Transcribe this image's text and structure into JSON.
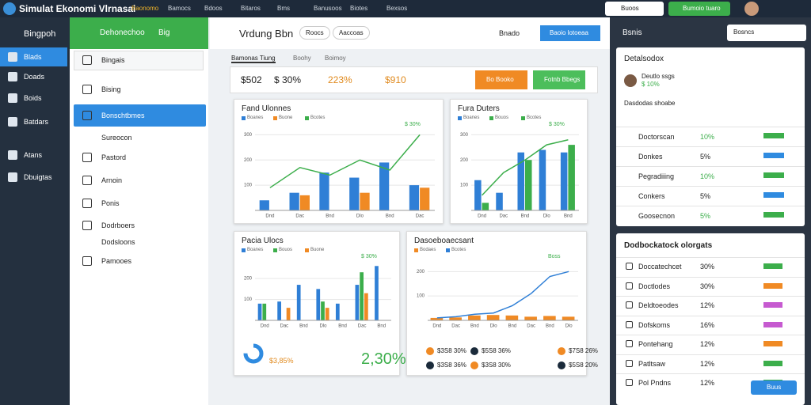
{
  "app": {
    "title": "Simulat Ekonomi Vlrnasai",
    "menu": [
      "Baonomo",
      "Bamocs",
      "Bdoos",
      "Bitaros",
      "Bms",
      "Banusoos",
      "Biotes",
      "Bexsos"
    ],
    "search": "Buoos",
    "action": "Bumoio tuaro"
  },
  "sidebar": {
    "brand": "Bingpoh",
    "items": [
      "Blads",
      "Doads",
      "Boids",
      "Batdars",
      "Atans",
      "Dbuigtas"
    ]
  },
  "panel": {
    "title": "Dehonechoo",
    "badge": "Big",
    "items": [
      "Bingais",
      "Bising",
      "Bonschtbmes",
      "Sureocon",
      "Pastord",
      "Arnoin",
      "Ponis",
      "Dodrboers",
      "Dodsloons",
      "Pamooes"
    ]
  },
  "main": {
    "title": "Vrdung Bbn",
    "tabs": [
      "Roocs",
      "Aaccoas"
    ],
    "button_label": "Bnado",
    "button": "Baoio lotoeaa",
    "subtabs": [
      "Bamonas Tiung",
      "Boohy",
      "Boimoy"
    ],
    "stats": [
      "$502",
      "$ 30%",
      "223%",
      "$910"
    ],
    "actions": [
      "Bo Booko",
      "Fotnb Bbegs"
    ],
    "charts": [
      {
        "type": "bar",
        "title": "Fand Ulonnes",
        "badge": "$ 30%",
        "categories": [
          "Dnd",
          "Dac",
          "Bnd",
          "Dlo",
          "Bnd",
          "Dac"
        ],
        "ylim": [
          0,
          320
        ],
        "yticks": [
          100,
          200,
          300
        ],
        "series": [
          {
            "name": "Boanes",
            "color": "#2f7fd6",
            "type": "bar",
            "values": [
              40,
              70,
              150,
              130,
              190,
              100
            ]
          },
          {
            "name": "Buone",
            "color": "#f08a24",
            "type": "bar",
            "values": [
              null,
              60,
              null,
              70,
              null,
              90
            ]
          },
          {
            "name": "Bcotes",
            "color": "#3cae4b",
            "type": "line",
            "values": [
              90,
              170,
              140,
              200,
              160,
              300
            ]
          }
        ]
      },
      {
        "type": "bar",
        "title": "Fura Duters",
        "badge": "$ 30%",
        "categories": [
          "Dnd",
          "Dac",
          "Bnd",
          "Dlo",
          "Bnd"
        ],
        "ylim": [
          0,
          320
        ],
        "yticks": [
          100,
          200,
          300
        ],
        "series": [
          {
            "name": "Boanes",
            "color": "#2f7fd6",
            "type": "bar",
            "values": [
              120,
              70,
              230,
              240,
              230
            ]
          },
          {
            "name": "Bouos",
            "color": "#3cae4b",
            "type": "bar",
            "values": [
              30,
              null,
              200,
              null,
              260
            ]
          },
          {
            "name": "Bcotes",
            "color": "#3cae4b",
            "type": "line",
            "values": [
              60,
              150,
              200,
              260,
              280
            ]
          }
        ]
      },
      {
        "type": "bar",
        "title": "Pacia Ulocs",
        "badge": "$ 30%",
        "categories": [
          "Dnd",
          "Dac",
          "Bnd",
          "Dlo",
          "Bnd",
          "Dac",
          "Bnd"
        ],
        "ylim": [
          0,
          280
        ],
        "yticks": [
          100,
          200
        ],
        "series": [
          {
            "name": "Boanes",
            "color": "#2f7fd6",
            "type": "bar",
            "values": [
              80,
              90,
              170,
              150,
              80,
              170,
              260
            ]
          },
          {
            "name": "Bouos",
            "color": "#3cae4b",
            "type": "bar",
            "values": [
              80,
              null,
              null,
              90,
              null,
              230,
              null
            ]
          },
          {
            "name": "Buone",
            "color": "#f08a24",
            "type": "bar",
            "values": [
              null,
              60,
              null,
              60,
              null,
              130,
              null
            ]
          }
        ]
      },
      {
        "type": "line",
        "title": "Dasoeboaecsant",
        "badge": "Boss",
        "categories": [
          "Dnd",
          "Dac",
          "Bnd",
          "Dlo",
          "Bnd",
          "Dac",
          "Bnd",
          "Dlo"
        ],
        "ylim": [
          0,
          240
        ],
        "yticks": [
          100,
          200
        ],
        "series": [
          {
            "name": "Bodaes",
            "color": "#f08a24",
            "type": "bar",
            "values": [
              10,
              12,
              20,
              22,
              20,
              15,
              18,
              15
            ]
          },
          {
            "name": "Bcotes",
            "color": "#2f7fd6",
            "type": "line",
            "values": [
              10,
              15,
              25,
              30,
              60,
              110,
              180,
              200
            ]
          }
        ]
      }
    ],
    "donut_label": "$3,85%",
    "donut_value": 75,
    "big": "2,30%",
    "footer": [
      "$3S8 30%",
      "$5S8 36%",
      "$7S8 26%",
      "$3S8 36%",
      "$3S8 30%",
      "$5S8 20%"
    ]
  },
  "right": {
    "title": "Bsnis",
    "search": "Bosncs",
    "card1": {
      "title": "Detalsodox",
      "person": "Deutlo ssgs",
      "amount": "$ 10%",
      "subtitle": "Dasdodas shoabe",
      "rows": [
        [
          "Doctorscan",
          "10%"
        ],
        [
          "Donkes",
          "5%"
        ],
        [
          "Pegradiiing",
          "10%"
        ],
        [
          "Conkers",
          "5%"
        ],
        [
          "Goosecnon",
          "5%"
        ]
      ]
    },
    "card2": {
      "title": "Dodbockatock olorgats",
      "rows": [
        [
          "Doccatechcet",
          "30%"
        ],
        [
          "Doctlodes",
          "30%"
        ],
        [
          "Deldtoeodes",
          "12%"
        ],
        [
          "Dofskoms",
          "16%"
        ],
        [
          "Pontehang",
          "12%"
        ],
        [
          "Patltsaw",
          "12%"
        ],
        [
          "Pol Pndns",
          "12%"
        ]
      ],
      "button": "Buus"
    }
  }
}
